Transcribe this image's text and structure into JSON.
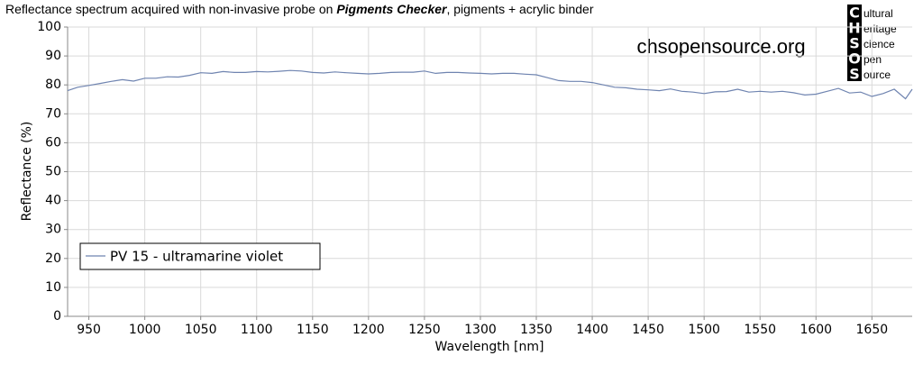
{
  "chart_data": {
    "type": "line",
    "title": [
      "Reflectance spectrum acquired with non-invasive probe on ",
      "Pigments Checker",
      ", pigments + acrylic binder"
    ],
    "watermark": "chsopensource.org",
    "logo": {
      "letters": [
        "C",
        "H",
        "S",
        "O",
        "S"
      ],
      "words": [
        "ultural",
        "eritage",
        "cience",
        "pen",
        "ource"
      ]
    },
    "x_label": "Wavelength [nm]",
    "y_label": "Reflectance (%)",
    "x": [
      931,
      940,
      950,
      960,
      970,
      980,
      990,
      1000,
      1010,
      1020,
      1030,
      1040,
      1050,
      1060,
      1070,
      1080,
      1090,
      1100,
      1110,
      1120,
      1130,
      1140,
      1150,
      1160,
      1170,
      1180,
      1190,
      1200,
      1210,
      1220,
      1230,
      1240,
      1250,
      1260,
      1270,
      1280,
      1290,
      1300,
      1310,
      1320,
      1330,
      1340,
      1350,
      1360,
      1370,
      1380,
      1390,
      1400,
      1410,
      1420,
      1430,
      1440,
      1450,
      1460,
      1470,
      1480,
      1490,
      1500,
      1510,
      1520,
      1530,
      1540,
      1550,
      1560,
      1570,
      1580,
      1590,
      1600,
      1610,
      1620,
      1630,
      1640,
      1650,
      1660,
      1670,
      1680,
      1686
    ],
    "series": [
      {
        "name": "PV 15 - ultramarine violet",
        "color": "#6f84b0",
        "values": [
          78,
          79.2,
          79.8,
          80.5,
          81.2,
          81.8,
          81.3,
          82.3,
          82.3,
          82.8,
          82.7,
          83.3,
          84.2,
          84,
          84.6,
          84.3,
          84.3,
          84.6,
          84.5,
          84.7,
          85,
          84.8,
          84.3,
          84.1,
          84.5,
          84.2,
          84,
          83.8,
          84,
          84.3,
          84.4,
          84.4,
          84.8,
          84,
          84.3,
          84.3,
          84.1,
          84,
          83.8,
          84,
          84,
          83.7,
          83.5,
          82.5,
          81.5,
          81.2,
          81.2,
          80.8,
          80,
          79.2,
          79,
          78.5,
          78.3,
          78,
          78.6,
          77.8,
          77.5,
          77,
          77.6,
          77.7,
          78.5,
          77.5,
          77.8,
          77.5,
          77.8,
          77.3,
          76.5,
          76.8,
          77.8,
          78.8,
          77.2,
          77.5,
          76,
          77,
          78.5,
          75.2,
          78.5
        ]
      }
    ],
    "xlim": [
      931,
      1686
    ],
    "ylim": [
      0,
      100
    ],
    "xticks": [
      950,
      1000,
      1050,
      1100,
      1150,
      1200,
      1250,
      1300,
      1350,
      1400,
      1450,
      1500,
      1550,
      1600,
      1650
    ],
    "yticks": [
      0,
      10,
      20,
      30,
      40,
      50,
      60,
      70,
      80,
      90,
      100
    ],
    "grid": true
  }
}
